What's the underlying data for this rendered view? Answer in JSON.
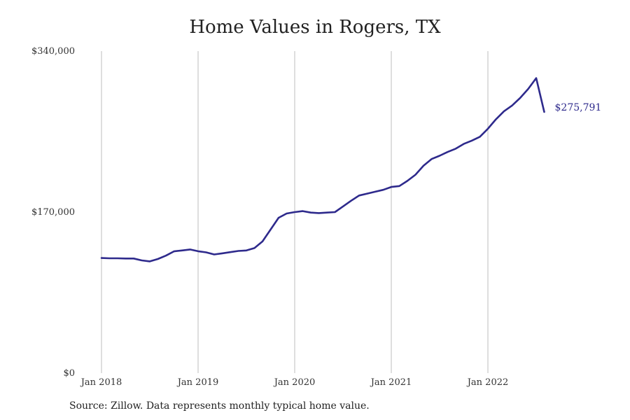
{
  "title": "Home Values in Rogers, TX",
  "source": "Source: Zillow. Data represents monthly typical home value.",
  "colors": {
    "line": "#2e2a8c",
    "grid": "#bdbdbd"
  },
  "chart_data": {
    "type": "line",
    "title": "Home Values in Rogers, TX",
    "xlabel": "",
    "ylabel": "",
    "ylim": [
      0,
      340000
    ],
    "y_ticks": [
      0,
      170000,
      340000
    ],
    "y_tick_labels": [
      "$0",
      "$170,000",
      "$340,000"
    ],
    "x_ticks": [
      "2018-01",
      "2019-01",
      "2020-01",
      "2021-01",
      "2022-01"
    ],
    "x_tick_labels": [
      "Jan 2018",
      "Jan 2019",
      "Jan 2020",
      "Jan 2021",
      "Jan 2022"
    ],
    "grid": "vertical lines at x ticks",
    "end_label": "$275,791",
    "series": [
      {
        "x": [
          "2018-01",
          "2018-02",
          "2018-03",
          "2018-04",
          "2018-05",
          "2018-06",
          "2018-07",
          "2018-08",
          "2018-09",
          "2018-10",
          "2018-11",
          "2018-12",
          "2019-01",
          "2019-02",
          "2019-03",
          "2019-04",
          "2019-05",
          "2019-06",
          "2019-07",
          "2019-08",
          "2019-09",
          "2019-10",
          "2019-11",
          "2019-12",
          "2020-01",
          "2020-02",
          "2020-03",
          "2020-04",
          "2020-05",
          "2020-06",
          "2020-07",
          "2020-08",
          "2020-09",
          "2020-10",
          "2020-11",
          "2020-12",
          "2021-01",
          "2021-02",
          "2021-03",
          "2021-04",
          "2021-05",
          "2021-06",
          "2021-07",
          "2021-08",
          "2021-09",
          "2021-10",
          "2021-11",
          "2021-12",
          "2022-01",
          "2022-02",
          "2022-03",
          "2022-04",
          "2022-05",
          "2022-06",
          "2022-07",
          "2022-08"
        ],
        "values": [
          121500,
          121200,
          121200,
          121000,
          121000,
          119000,
          118000,
          120500,
          124000,
          128500,
          129500,
          130500,
          128700,
          127500,
          125300,
          126500,
          127700,
          129000,
          129500,
          132000,
          139000,
          151500,
          164000,
          168500,
          170000,
          171000,
          169500,
          169000,
          169500,
          170000,
          176000,
          182000,
          187500,
          189500,
          191500,
          193500,
          196500,
          197500,
          203000,
          209500,
          219000,
          226000,
          229500,
          233500,
          237000,
          242000,
          245500,
          249500,
          258000,
          268000,
          276500,
          282500,
          290500,
          300000,
          311500,
          275791
        ]
      }
    ]
  }
}
